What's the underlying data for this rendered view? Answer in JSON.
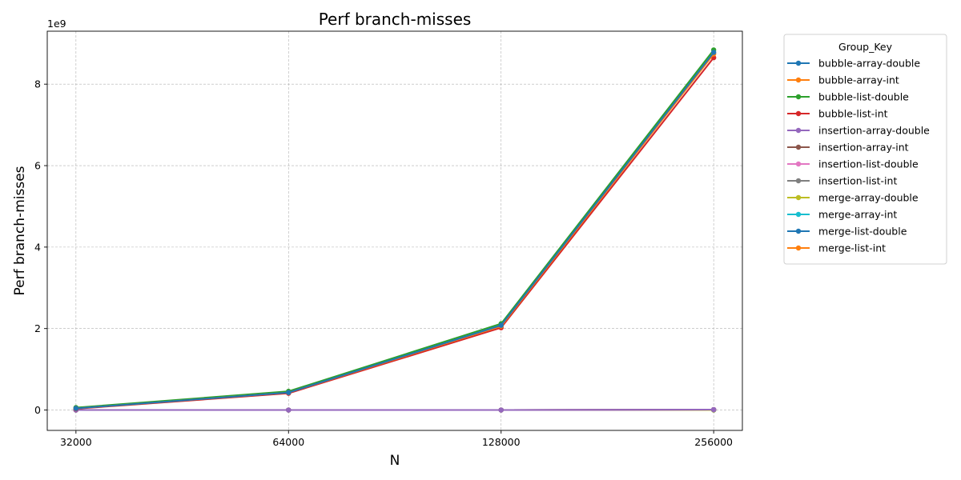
{
  "chart_data": {
    "type": "line",
    "title": "Perf branch-misses",
    "xlabel": "N",
    "ylabel": "Perf branch-misses",
    "y_offset_label": "1e9",
    "x_scale": "log2",
    "x": [
      32000,
      64000,
      128000,
      256000
    ],
    "x_tick_labels": [
      "32000",
      "64000",
      "128000",
      "256000"
    ],
    "ylim": [
      -0.5,
      9.3
    ],
    "y_unit_multiplier": 1000000000,
    "y_ticks": [
      0,
      2,
      4,
      6,
      8
    ],
    "y_tick_labels": [
      "0",
      "2",
      "4",
      "6",
      "8"
    ],
    "grid": true,
    "legend": {
      "title": "Group_Key",
      "position": "outside-right-top"
    },
    "series": [
      {
        "name": "bubble-array-double",
        "color": "#1f77b4",
        "values": [
          0.04,
          0.43,
          2.08,
          8.78
        ]
      },
      {
        "name": "bubble-array-int",
        "color": "#ff7f0e",
        "values": [
          0.04,
          0.43,
          2.06,
          8.74
        ]
      },
      {
        "name": "bubble-list-double",
        "color": "#2ca02c",
        "values": [
          0.06,
          0.46,
          2.12,
          8.84
        ]
      },
      {
        "name": "bubble-list-int",
        "color": "#d62728",
        "values": [
          0.03,
          0.41,
          2.02,
          8.65
        ]
      },
      {
        "name": "insertion-array-double",
        "color": "#9467bd",
        "values": [
          0.0,
          0.0,
          0.0,
          0.01
        ]
      },
      {
        "name": "insertion-array-int",
        "color": "#8c564b",
        "values": [
          0.0,
          0.0,
          0.0,
          0.01
        ]
      },
      {
        "name": "insertion-list-double",
        "color": "#e377c2",
        "values": [
          0.0,
          0.0,
          0.0,
          0.01
        ]
      },
      {
        "name": "insertion-list-int",
        "color": "#7f7f7f",
        "values": [
          0.0,
          0.0,
          0.0,
          0.01
        ]
      },
      {
        "name": "merge-array-double",
        "color": "#bcbd22",
        "values": [
          0.0,
          0.0,
          0.0,
          0.0
        ]
      },
      {
        "name": "merge-array-int",
        "color": "#17becf",
        "values": [
          0.0,
          0.0,
          0.0,
          0.0
        ]
      },
      {
        "name": "merge-list-double",
        "color": "#1f77b4",
        "values": [
          0.0,
          0.0,
          0.0,
          0.0
        ]
      },
      {
        "name": "merge-list-int",
        "color": "#ff7f0e",
        "values": [
          0.0,
          0.0,
          0.0,
          0.0
        ]
      }
    ]
  }
}
